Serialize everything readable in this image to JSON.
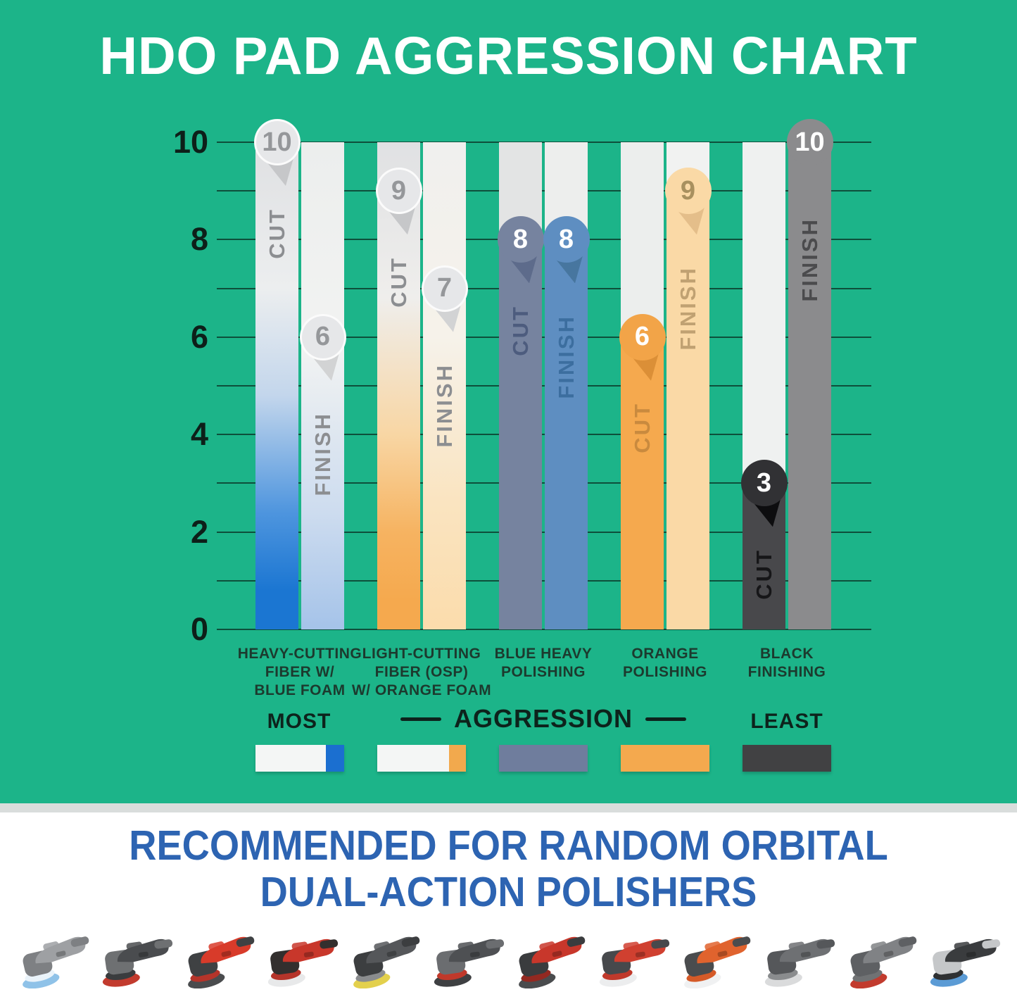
{
  "title": "HDO PAD AGGRESSION CHART",
  "chart_data": {
    "type": "bar",
    "title": "HDO PAD AGGRESSION CHART",
    "xlabel": "",
    "ylabel": "",
    "ylim": [
      0,
      10
    ],
    "yticks": [
      0,
      2,
      4,
      6,
      8,
      10
    ],
    "grid_every": 1,
    "legend_position": "below",
    "categories": [
      "HEAVY-CUTTING FIBER W/ BLUE FOAM",
      "LIGHT-CUTTING FIBER (OSP) W/ ORANGE FOAM",
      "BLUE HEAVY POLISHING",
      "ORANGE POLISHING",
      "BLACK FINISHING"
    ],
    "series": [
      {
        "name": "CUT",
        "values": [
          10,
          9,
          8,
          6,
          3
        ]
      },
      {
        "name": "FINISH",
        "values": [
          6,
          7,
          8,
          9,
          10
        ]
      }
    ]
  },
  "columns": [
    {
      "label_lines": [
        "HEAVY-CUTTING",
        "FIBER W/",
        "BLUE FOAM"
      ],
      "cut": {
        "style": "gradient",
        "gradient": [
          "#DFE0E2 0%",
          "#ECEEEF 30%",
          "#C3D6EC 52%",
          "#4E95DE 76%",
          "#1B76D2 92%",
          "#1B76D2 100%"
        ],
        "badge_fill": "#E6E7E9",
        "badge_text_color": "#95979A",
        "badge_ring": true,
        "fold_color": "#C6C7C9",
        "label_color": "#8C8E91"
      },
      "finish": {
        "style": "gradient",
        "gradient": [
          "#ECEEED 0%",
          "#F2F3F2 42%",
          "#CDDCEF 76%",
          "#A5C3E9 100%"
        ],
        "badge_fill": "#E6E7E9",
        "badge_text_color": "#95979A",
        "badge_ring": true,
        "fold_color": "#D2D3D4",
        "label_color": "#8C8E91"
      }
    },
    {
      "label_lines": [
        "LIGHT-CUTTING",
        "FIBER (OSP)",
        "W/ ORANGE FOAM"
      ],
      "cut": {
        "style": "gradient",
        "gradient": [
          "#E0E1E3 0%",
          "#EFEEEC 32%",
          "#F8D6A4 60%",
          "#F6B361 80%",
          "#F5A94E 94%"
        ],
        "badge_fill": "#E6E7E9",
        "badge_text_color": "#95979A",
        "badge_ring": true,
        "fold_color": "#C6C7C9",
        "label_color": "#8C8E91"
      },
      "finish": {
        "style": "gradient",
        "gradient": [
          "#F0F0EE 0%",
          "#F6F2EA 40%",
          "#FAE4C0 74%",
          "#FBDCAC 100%"
        ],
        "badge_fill": "#E6E7E9",
        "badge_text_color": "#95979A",
        "badge_ring": true,
        "fold_color": "#D2D3D4",
        "label_color": "#8C8E91"
      }
    },
    {
      "label_lines": [
        "BLUE HEAVY",
        "POLISHING"
      ],
      "cut": {
        "style": "solid",
        "solid": "#76839F",
        "track": "#E3E4E4",
        "badge_fill": "#76839F",
        "badge_text_color": "#FFFFFF",
        "badge_ring": false,
        "fold_color": "#5D6B8B",
        "label_color": "#4D5C7E"
      },
      "finish": {
        "style": "solid",
        "solid": "#5E8EC1",
        "track": "#EDEEED",
        "badge_fill": "#5E8EC1",
        "badge_text_color": "#FFFFFF",
        "badge_ring": false,
        "fold_color": "#47769F",
        "label_color": "#3C6E9F"
      }
    },
    {
      "label_lines": [
        "ORANGE",
        "POLISHING"
      ],
      "cut": {
        "style": "solid",
        "solid": "#F5A94E",
        "track": "#ECEEED",
        "badge_fill": "#F2A448",
        "badge_text_color": "#FFFFFF",
        "badge_ring": false,
        "fold_color": "#DB8F37",
        "label_color": "#C98A3E"
      },
      "finish": {
        "style": "solid",
        "solid": "#FAD9A6",
        "track": "#F1F2F1",
        "badge_fill": "#FAD9A6",
        "badge_text_color": "#A8905F",
        "badge_ring": false,
        "fold_color": "#E4BE8A",
        "label_color": "#C0A172"
      }
    },
    {
      "label_lines": [
        "BLACK",
        "FINISHING"
      ],
      "cut": {
        "style": "solid",
        "solid": "#48484B",
        "track": "#EFF1F0",
        "badge_fill": "#313134",
        "badge_text_color": "#FFFFFF",
        "badge_ring": false,
        "fold_color": "#0D0D0F",
        "label_color": "#161618"
      },
      "finish": {
        "style": "solid",
        "solid": "#8B8B8D",
        "track": null,
        "badge_fill": "#8B8B8D",
        "badge_text_color": "#FFFFFF",
        "badge_ring": false,
        "fold_color": null,
        "label_color": "#4B4B4D"
      }
    }
  ],
  "legend": {
    "most_label": "MOST",
    "aggression_label": "AGGRESSION",
    "least_label": "LEAST",
    "swatches": [
      {
        "base": "#F4F6F5",
        "end_block": "#1B6FD0",
        "end_width": 26
      },
      {
        "base": "#F4F6F5",
        "end_block": "#F2A94D",
        "end_width": 24
      },
      {
        "base": "#6F7D9D",
        "end_block": null,
        "end_width": 0
      },
      {
        "base": "#F4A94E",
        "end_block": null,
        "end_width": 0
      },
      {
        "base": "#414143",
        "end_block": null,
        "end_width": 0
      }
    ]
  },
  "footer": {
    "heading_line1": "RECOMMENDED FOR RANDOM ORBITAL",
    "heading_line2": "DUAL-ACTION POLISHERS",
    "heading_color": "#2D64B2"
  },
  "colors": {
    "background_green": "#1CB489",
    "gridline": "rgba(10,45,34,0.75)",
    "title_text": "#FFFFFF",
    "axis_text": "#0D1F19",
    "category_text": "#1C3A2E"
  },
  "polishers": [
    {
      "name": "gray-polisher-blue-pad",
      "body": "#9EA0A3",
      "head": "#7E8083",
      "pad": "#8FC2E8",
      "backing": "#EAF3FA"
    },
    {
      "name": "charcoal-polisher-red-pad",
      "body": "#4A4C4F",
      "head": "#6E7072",
      "pad": "#C23B2E",
      "backing": "#3A3C3E"
    },
    {
      "name": "red-polisher-dark-pad",
      "body": "#D83B2A",
      "head": "#3F4143",
      "pad": "#4A4C4E",
      "backing": "#B5342A"
    },
    {
      "name": "red-polisher-white-pad",
      "body": "#C8372B",
      "head": "#332F2E",
      "pad": "#E8E9EA",
      "backing": "#B5342A"
    },
    {
      "name": "gray-polisher-yellow-pad",
      "body": "#55575A",
      "head": "#3C3E40",
      "pad": "#E3D04C",
      "backing": "#8A8C8E"
    },
    {
      "name": "gray-polisher-red-accent",
      "body": "#4E5053",
      "head": "#6B6D70",
      "pad": "#3E4042",
      "backing": "#C0392B"
    },
    {
      "name": "red-angle-polisher",
      "body": "#C8372B",
      "head": "#3A3C3E",
      "pad": "#4A4C4E",
      "backing": "#932921"
    },
    {
      "name": "red-polisher-light-pad",
      "body": "#D04030",
      "head": "#47494C",
      "pad": "#ECEDEE",
      "backing": "#C0392B"
    },
    {
      "name": "orange-mouse-sander",
      "body": "#E0632E",
      "head": "#4A4C4E",
      "pad": "#F0F1F2",
      "backing": "#D55A28"
    },
    {
      "name": "gray-polisher-light-pad",
      "body": "#6E7073",
      "head": "#55575A",
      "pad": "#DADBDC",
      "backing": "#8A8C8E"
    },
    {
      "name": "gray-polisher-red-ring",
      "body": "#808285",
      "head": "#5E6063",
      "pad": "#C23B2E",
      "backing": "#707274"
    },
    {
      "name": "black-silver-blue-pad",
      "body": "#3A3C3E",
      "head": "#C5C7C9",
      "pad": "#5B9BD5",
      "backing": "#2F3133"
    }
  ]
}
